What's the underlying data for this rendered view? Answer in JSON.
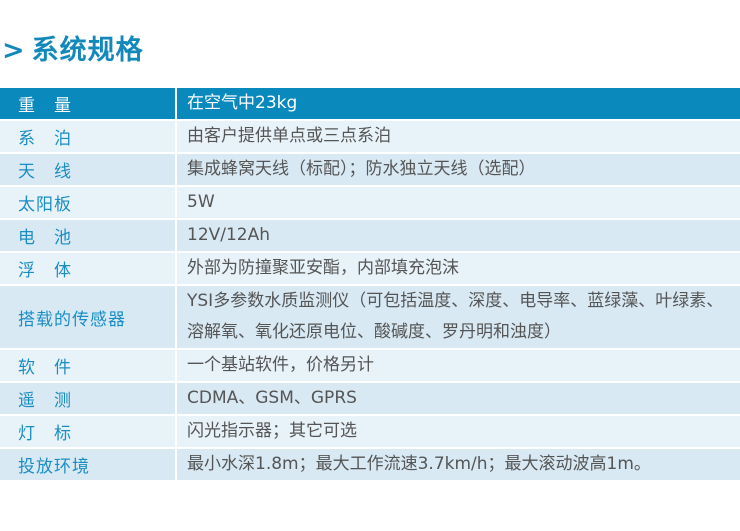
{
  "title": "系统规格",
  "title_prefix": ">",
  "colors": {
    "accent": "#0a89bc",
    "row_light": "#e7f2f9",
    "row_dark": "#d8e9f4",
    "label": "#1a8ec4"
  },
  "rows": [
    {
      "label": "重　量",
      "value": "在空气中23kg"
    },
    {
      "label": "系　泊",
      "value": "由客户提供单点或三点系泊"
    },
    {
      "label": "天　线",
      "value": "集成蜂窝天线（标配）；防水独立天线（选配）"
    },
    {
      "label": "太阳板",
      "value": "5W"
    },
    {
      "label": "电　池",
      "value": "12V/12Ah"
    },
    {
      "label": "浮　体",
      "value": "外部为防撞聚亚安酯，内部填充泡沫"
    },
    {
      "label": "搭载的传感器",
      "value": "YSI多参数水质监测仪（可包括温度、深度、电导率、蓝绿藻、叶绿素、溶解氧、氧化还原电位、酸碱度、罗丹明和浊度）"
    },
    {
      "label": "软　件",
      "value": "一个基站软件，价格另计"
    },
    {
      "label": "遥　测",
      "value": "CDMA、GSM、GPRS"
    },
    {
      "label": "灯　标",
      "value": "闪光指示器；其它可选"
    },
    {
      "label": "投放环境",
      "value": "最小水深1.8m；最大工作流速3.7km/h；最大滚动波高1m。"
    }
  ]
}
